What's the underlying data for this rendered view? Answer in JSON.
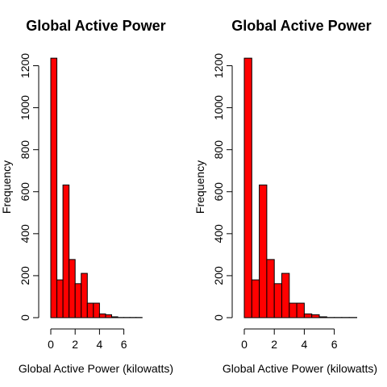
{
  "figure": {
    "background": "#ffffff",
    "bar_fill": "#ff0000",
    "bar_stroke": "#000000"
  },
  "chart_data": [
    {
      "type": "bar",
      "histogram": true,
      "title": "Global Active Power",
      "xlabel": "Global Active Power (kilowatts)",
      "ylabel": "Frequency",
      "bin_edges": [
        0,
        0.5,
        1,
        1.5,
        2,
        2.5,
        3,
        3.5,
        4,
        4.5,
        5,
        5.5,
        6,
        6.5,
        7,
        7.5
      ],
      "values": [
        1236,
        180,
        632,
        277,
        162,
        211,
        69,
        69,
        18,
        14,
        4,
        1,
        1,
        1,
        1
      ],
      "xlim": [
        0,
        7.5
      ],
      "ylim": [
        0,
        1240
      ],
      "xticks": [
        0,
        2,
        4,
        6
      ],
      "yticks": [
        0,
        200,
        400,
        600,
        800,
        1000,
        1200
      ],
      "grid": false,
      "legend": false
    },
    {
      "type": "bar",
      "histogram": true,
      "title": "Global Active Power",
      "xlabel": "Global Active Power (kilowatts)",
      "ylabel": "Frequency",
      "bin_edges": [
        0,
        0.5,
        1,
        1.5,
        2,
        2.5,
        3,
        3.5,
        4,
        4.5,
        5,
        5.5,
        6,
        6.5,
        7,
        7.5
      ],
      "values": [
        1236,
        180,
        632,
        277,
        162,
        211,
        69,
        69,
        18,
        14,
        4,
        1,
        1,
        1,
        1
      ],
      "xlim": [
        0,
        7.5
      ],
      "ylim": [
        0,
        1240
      ],
      "xticks": [
        0,
        2,
        4,
        6
      ],
      "yticks": [
        0,
        200,
        400,
        600,
        800,
        1000,
        1200
      ],
      "grid": false,
      "legend": false
    }
  ]
}
